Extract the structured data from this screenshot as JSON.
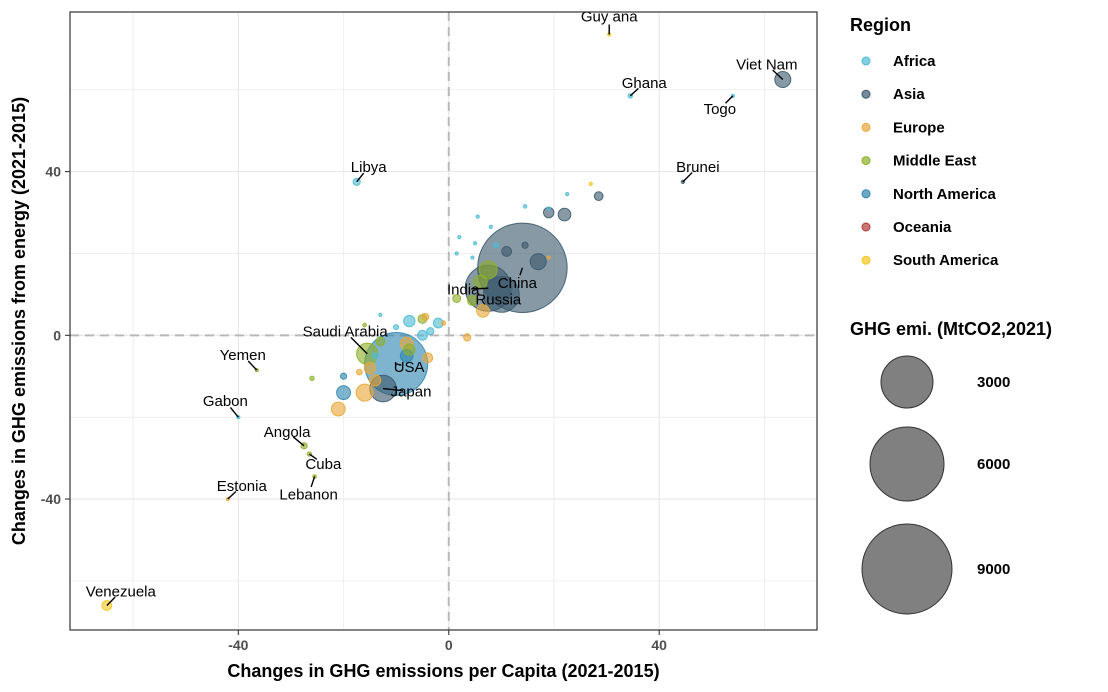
{
  "chart_data": {
    "type": "scatter",
    "xlabel": "Changes in GHG emissions per Capita (2021-2015)",
    "ylabel": "Changes in GHG emissions from energy (2021-2015)",
    "xlim": [
      -72,
      70
    ],
    "ylim": [
      -72,
      79
    ],
    "xticks": [
      -40,
      0,
      40
    ],
    "yticks": [
      -40,
      0,
      40
    ],
    "grid": true,
    "reference_lines": {
      "x": 0,
      "y": 0
    },
    "color_legend": {
      "title": "Region",
      "placement": "right",
      "items": [
        {
          "name": "Africa",
          "color": "#4DBBD5"
        },
        {
          "name": "Asia",
          "color": "#3C5A6E"
        },
        {
          "name": "Europe",
          "color": "#E8A838"
        },
        {
          "name": "Middle East",
          "color": "#8FAF2A"
        },
        {
          "name": "North America",
          "color": "#2E86B0"
        },
        {
          "name": "Oceania",
          "color": "#B23A3A"
        },
        {
          "name": "South America",
          "color": "#F2C81E"
        }
      ]
    },
    "size_legend": {
      "title": "GHG emi. (MtCO2,2021)",
      "placement": "right",
      "items": [
        {
          "label": "3000",
          "value": 3000
        },
        {
          "label": "6000",
          "value": 6000
        },
        {
          "label": "9000",
          "value": 9000
        }
      ]
    },
    "points": [
      {
        "label": "Guy ana",
        "region": "South America",
        "x": 30.5,
        "y": 73.5,
        "size": 5
      },
      {
        "label": "Viet Nam",
        "region": "Asia",
        "x": 63.5,
        "y": 62.5,
        "size": 400
      },
      {
        "label": "Ghana",
        "region": "Africa",
        "x": 34.5,
        "y": 58.5,
        "size": 30
      },
      {
        "label": "Togo",
        "region": "Africa",
        "x": 54,
        "y": 58.5,
        "size": 3
      },
      {
        "label": "Libya",
        "region": "Africa",
        "x": -17.5,
        "y": 37.5,
        "size": 80
      },
      {
        "label": "Brunei",
        "region": "Asia",
        "x": 44.5,
        "y": 37.5,
        "size": 15
      },
      {
        "label": "China",
        "region": "Asia",
        "x": 14,
        "y": 16.5,
        "size": 12500
      },
      {
        "label": "India",
        "region": "Asia",
        "x": 7.5,
        "y": 11.5,
        "size": 3300
      },
      {
        "label": "Russia",
        "region": "Asia",
        "x": 10,
        "y": 10,
        "size": 2000
      },
      {
        "label": "Saudi Arabia",
        "region": "Middle East",
        "x": -15.5,
        "y": -4.5,
        "size": 700
      },
      {
        "label": "USA",
        "region": "North America",
        "x": -10,
        "y": -7,
        "size": 6200
      },
      {
        "label": "Japan",
        "region": "Asia",
        "x": -12.5,
        "y": -13,
        "size": 1100
      },
      {
        "label": "Yemen",
        "region": "Middle East",
        "x": -36.5,
        "y": -8.5,
        "size": 10
      },
      {
        "label": "Gabon",
        "region": "Africa",
        "x": -40,
        "y": -20,
        "size": 15
      },
      {
        "label": "Angola",
        "region": "Middle East",
        "x": -27.5,
        "y": -27,
        "size": 60
      },
      {
        "label": "Cuba",
        "region": "Middle East",
        "x": -26.5,
        "y": -29,
        "size": 30
      },
      {
        "label": "Lebanon",
        "region": "Middle East",
        "x": -25.5,
        "y": -34.5,
        "size": 20
      },
      {
        "label": "Estonia",
        "region": "Europe",
        "x": -42,
        "y": -40,
        "size": 10
      },
      {
        "label": "Venezuela",
        "region": "South America",
        "x": -65,
        "y": -66,
        "size": 150
      }
    ],
    "other_points": [
      {
        "region": "Africa",
        "x": 19,
        "y": 31,
        "size": 15
      },
      {
        "region": "Africa",
        "x": 14.5,
        "y": 31.5,
        "size": 20
      },
      {
        "region": "Africa",
        "x": 22.5,
        "y": 34.5,
        "size": 10
      },
      {
        "region": "Asia",
        "x": 28.5,
        "y": 34,
        "size": 120
      },
      {
        "region": "Asia",
        "x": 19,
        "y": 30,
        "size": 170
      },
      {
        "region": "Asia",
        "x": 22,
        "y": 29.5,
        "size": 250
      },
      {
        "region": "South America",
        "x": 27,
        "y": 37,
        "size": 10
      },
      {
        "region": "Africa",
        "x": 5.5,
        "y": 29,
        "size": 8
      },
      {
        "region": "Africa",
        "x": 8,
        "y": 26.5,
        "size": 8
      },
      {
        "region": "Africa",
        "x": 2,
        "y": 24,
        "size": 8
      },
      {
        "region": "Africa",
        "x": 5,
        "y": 22.5,
        "size": 8
      },
      {
        "region": "Africa",
        "x": 1.5,
        "y": 20,
        "size": 15
      },
      {
        "region": "Africa",
        "x": 4.5,
        "y": 19,
        "size": 15
      },
      {
        "region": "Africa",
        "x": 9,
        "y": 22,
        "size": 40
      },
      {
        "region": "Asia",
        "x": 11,
        "y": 20.5,
        "size": 150
      },
      {
        "region": "Asia",
        "x": 14.5,
        "y": 22,
        "size": 60
      },
      {
        "region": "Asia",
        "x": 17,
        "y": 18,
        "size": 400
      },
      {
        "region": "Middle East",
        "x": 7.5,
        "y": 16,
        "size": 500
      },
      {
        "region": "Middle East",
        "x": 6,
        "y": 13,
        "size": 300
      },
      {
        "region": "Middle East",
        "x": 1.5,
        "y": 9,
        "size": 100
      },
      {
        "region": "Middle East",
        "x": 4.5,
        "y": 8.5,
        "size": 150
      },
      {
        "region": "Europe",
        "x": 6.5,
        "y": 6,
        "size": 250
      },
      {
        "region": "Europe",
        "x": 19,
        "y": 19,
        "size": 8
      },
      {
        "region": "Africa",
        "x": -7.5,
        "y": 3.5,
        "size": 200
      },
      {
        "region": "Africa",
        "x": -2,
        "y": 3,
        "size": 150
      },
      {
        "region": "Africa",
        "x": -3.5,
        "y": 1,
        "size": 80
      },
      {
        "region": "Africa",
        "x": -5,
        "y": 0,
        "size": 150
      },
      {
        "region": "Middle East",
        "x": -5,
        "y": 4,
        "size": 120
      },
      {
        "region": "Europe",
        "x": -4.5,
        "y": 4.5,
        "size": 80
      },
      {
        "region": "Europe",
        "x": -1,
        "y": 3,
        "size": 30
      },
      {
        "region": "Middle East",
        "x": -16,
        "y": 2.5,
        "size": 20
      },
      {
        "region": "Africa",
        "x": -13,
        "y": 5,
        "size": 10
      },
      {
        "region": "Africa",
        "x": -10,
        "y": 2,
        "size": 40
      },
      {
        "region": "Middle East",
        "x": -13,
        "y": -1.5,
        "size": 120
      },
      {
        "region": "Europe",
        "x": -8,
        "y": -2,
        "size": 250
      },
      {
        "region": "Middle East",
        "x": -7.5,
        "y": -3.5,
        "size": 200
      },
      {
        "region": "Europe",
        "x": -4,
        "y": -5.5,
        "size": 150
      },
      {
        "region": "Europe",
        "x": -15,
        "y": -8,
        "size": 200
      },
      {
        "region": "North America",
        "x": -8,
        "y": -5,
        "size": 250
      },
      {
        "region": "Africa",
        "x": -14,
        "y": -5,
        "size": 60
      },
      {
        "region": "Europe",
        "x": 3.5,
        "y": -0.5,
        "size": 80
      },
      {
        "region": "Middle East",
        "x": -26,
        "y": -10.5,
        "size": 30
      },
      {
        "region": "North America",
        "x": -20,
        "y": -10,
        "size": 60
      },
      {
        "region": "North America",
        "x": -20,
        "y": -14,
        "size": 300
      },
      {
        "region": "Europe",
        "x": -21,
        "y": -18,
        "size": 300
      },
      {
        "region": "Europe",
        "x": -16,
        "y": -14,
        "size": 450
      },
      {
        "region": "Europe",
        "x": -14,
        "y": -11,
        "size": 200
      },
      {
        "region": "Europe",
        "x": -17,
        "y": -9,
        "size": 50
      }
    ]
  }
}
